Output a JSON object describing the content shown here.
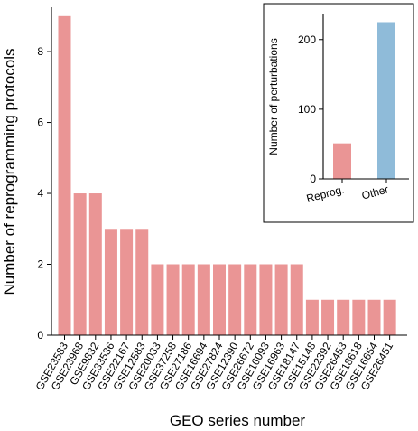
{
  "chart_data": [
    {
      "type": "bar",
      "categories": [
        "GSE23583",
        "GSE23968",
        "GSE9832",
        "GSE33536",
        "GSE22167",
        "GSE12583",
        "GSE20033",
        "GSE37258",
        "GSE27186",
        "GSE16694",
        "GSE27824",
        "GSE12390",
        "GSE26672",
        "GSE16093",
        "GSE16963",
        "GSE18147",
        "GSE15148",
        "GSE22392",
        "GSE26453",
        "GSE18618",
        "GSE16654",
        "GSE26451"
      ],
      "values": [
        9,
        4,
        4,
        3,
        3,
        3,
        2,
        2,
        2,
        2,
        2,
        2,
        2,
        2,
        2,
        2,
        1,
        1,
        1,
        1,
        1,
        1
      ],
      "xlabel": "GEO series number",
      "ylabel": "Number of reprogramming protocols",
      "ylim": [
        0,
        9.25
      ],
      "yticks": [
        0,
        2,
        4,
        6,
        8
      ],
      "bar_color": "#ea9595",
      "grid": false
    },
    {
      "type": "bar",
      "categories": [
        "Reprog.",
        "Other"
      ],
      "values": [
        51,
        225
      ],
      "ylabel": "Number of perturbations",
      "ylim": [
        0,
        236
      ],
      "yticks": [
        0,
        100,
        200
      ],
      "colors": [
        "#ea9595",
        "#8fbbd9"
      ],
      "placement": "top-right inset",
      "grid": false
    }
  ]
}
